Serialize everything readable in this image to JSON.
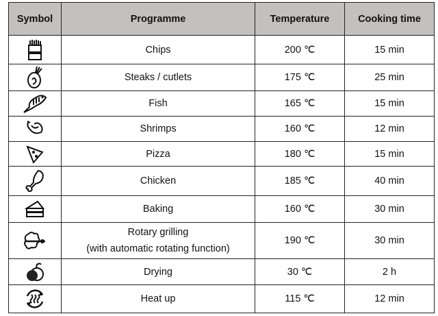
{
  "headers": {
    "symbol": "Symbol",
    "programme": "Programme",
    "temperature": "Temperature",
    "time": "Cooking time"
  },
  "header_bg": "#c3c0bd",
  "rows": [
    {
      "icon": "chips-icon",
      "programme": "Chips",
      "temperature": "200 ℃",
      "time": "15 min"
    },
    {
      "icon": "steak-icon",
      "programme": "Steaks / cutlets",
      "temperature": "175 ℃",
      "time": "25 min"
    },
    {
      "icon": "fish-icon",
      "programme": "Fish",
      "temperature": "165 ℃",
      "time": "15 min"
    },
    {
      "icon": "shrimp-icon",
      "programme": "Shrimps",
      "temperature": "160 ℃",
      "time": "12 min"
    },
    {
      "icon": "pizza-icon",
      "programme": "Pizza",
      "temperature": "180 ℃",
      "time": "15 min"
    },
    {
      "icon": "chicken-leg-icon",
      "programme": "Chicken",
      "temperature": "185 ℃",
      "time": "40 min"
    },
    {
      "icon": "cake-icon",
      "programme": "Baking",
      "temperature": "160 ℃",
      "time": "30 min"
    },
    {
      "icon": "rotisserie-icon",
      "programme": "Rotary grilling",
      "programme_note": "(with automatic rotating function)",
      "temperature": "190 ℃",
      "time": "30 min"
    },
    {
      "icon": "fruit-icon",
      "programme": "Drying",
      "temperature": "30 ℃",
      "time": "2 h"
    },
    {
      "icon": "heat-up-icon",
      "programme": "Heat up",
      "temperature": "115 ℃",
      "time": "12 min"
    }
  ]
}
